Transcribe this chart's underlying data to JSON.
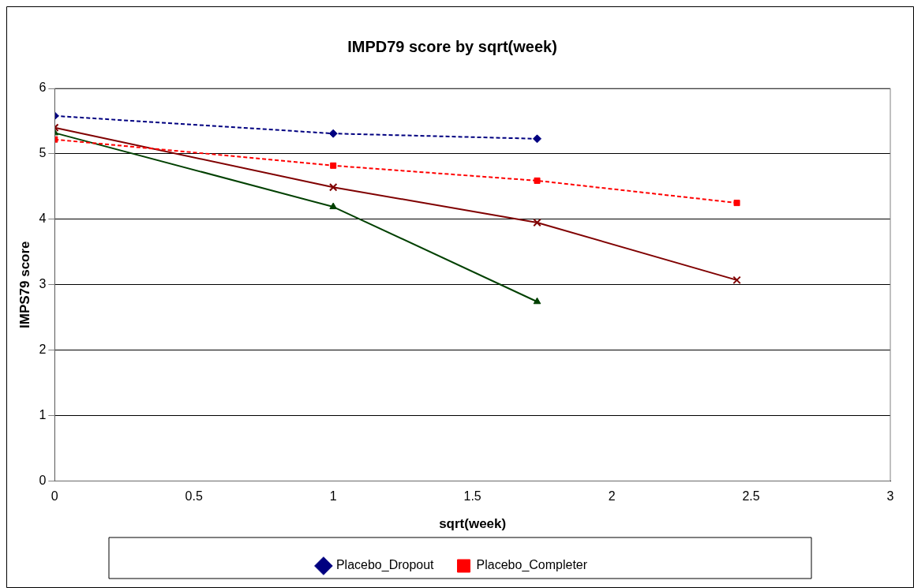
{
  "chart_data": {
    "type": "line",
    "title": "IMPD79 score by sqrt(week)",
    "xlabel": "sqrt(week)",
    "ylabel": "IMPS79 score",
    "xlim": [
      0,
      3
    ],
    "xticks": [
      0,
      0.5,
      1,
      1.5,
      2,
      2.5,
      3
    ],
    "ylim": [
      0,
      6
    ],
    "yticks": [
      0,
      1,
      2,
      3,
      4,
      5,
      6
    ],
    "grid": "y",
    "legend": "bottom",
    "series": [
      {
        "name": "Placebo_Dropout",
        "color": "#000080",
        "x": [
          0,
          1,
          1.732
        ],
        "values": [
          5.58,
          5.31,
          5.23
        ],
        "marker": "diamond",
        "line_style": "dashed"
      },
      {
        "name": "Placebo_Completer",
        "color": "#ff0000",
        "x": [
          0,
          1,
          1.732,
          2.449
        ],
        "values": [
          5.22,
          4.82,
          4.59,
          4.25
        ],
        "marker": "square",
        "line_style": "dashed"
      },
      {
        "color": "#800000",
        "x": [
          0,
          1,
          1.732,
          2.449
        ],
        "values": [
          5.4,
          4.49,
          3.95,
          3.07
        ],
        "marker": "cross",
        "line_style": "solid"
      },
      {
        "color": "#004000",
        "x": [
          0,
          1,
          1.732
        ],
        "values": [
          5.32,
          4.19,
          2.74
        ],
        "marker": "triangle",
        "line_style": "solid"
      }
    ]
  }
}
